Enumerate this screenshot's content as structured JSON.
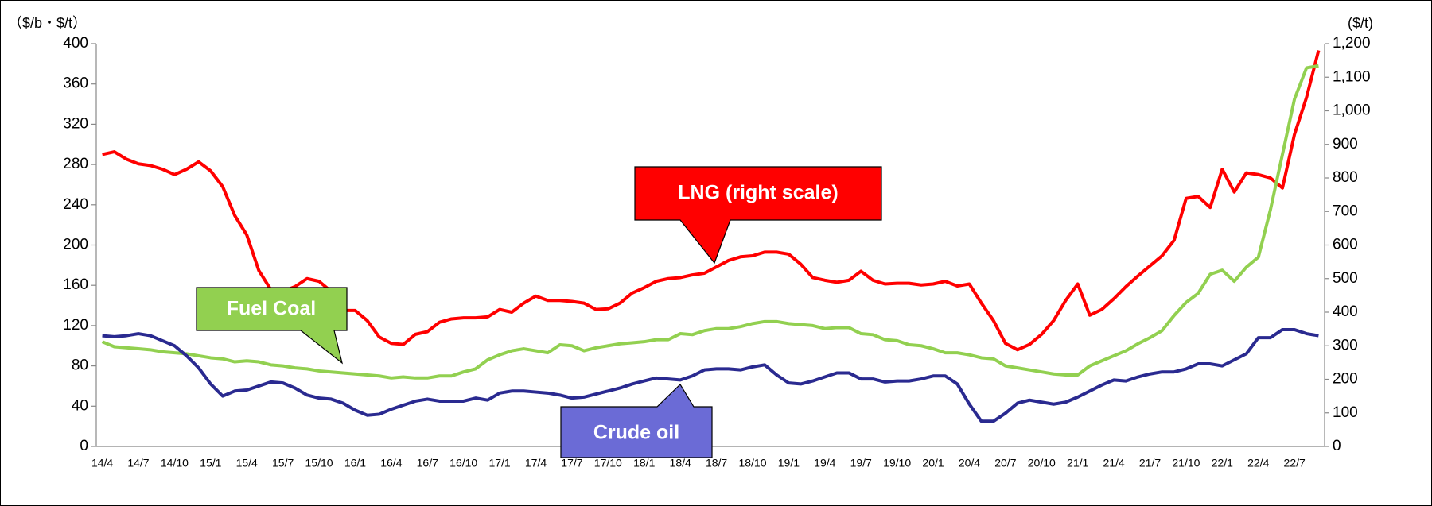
{
  "chart_data": {
    "type": "line",
    "y_label": "（$/b・$/t）",
    "y2_label": "($/t)",
    "categories": [
      "14/4",
      null,
      null,
      "14/7",
      null,
      null,
      "14/10",
      null,
      null,
      "15/1",
      null,
      null,
      "15/4",
      null,
      null,
      "15/7",
      null,
      null,
      "15/10",
      null,
      null,
      "16/1",
      null,
      null,
      "16/4",
      null,
      null,
      "16/7",
      null,
      null,
      "16/10",
      null,
      null,
      "17/1",
      null,
      null,
      "17/4",
      null,
      null,
      "17/7",
      null,
      null,
      "17/10",
      null,
      null,
      "18/1",
      null,
      null,
      "18/4",
      null,
      null,
      "18/7",
      null,
      null,
      "18/10",
      null,
      null,
      "19/1",
      null,
      null,
      "19/4",
      null,
      null,
      "19/7",
      null,
      null,
      "19/10",
      null,
      null,
      "20/1",
      null,
      null,
      "20/4",
      null,
      null,
      "20/7",
      null,
      null,
      "20/10",
      null,
      null,
      "21/1",
      null,
      null,
      "21/4",
      null,
      null,
      "21/7",
      null,
      null,
      "21/10",
      null,
      null,
      "22/1",
      null,
      null,
      "22/4",
      null,
      null,
      "22/7",
      null,
      null
    ],
    "series": [
      {
        "name": "LNG (right scale)",
        "color": "#ff0000",
        "axis": "y2",
        "values": [
          870,
          878,
          856,
          842,
          837,
          826,
          810,
          826,
          848,
          821,
          774,
          688,
          630,
          524,
          467,
          462,
          476,
          500,
          492,
          462,
          405,
          405,
          375,
          326,
          307,
          304,
          334,
          342,
          370,
          380,
          383,
          383,
          386,
          408,
          400,
          427,
          448,
          435,
          435,
          432,
          427,
          408,
          410,
          427,
          457,
          473,
          492,
          500,
          503,
          511,
          516,
          535,
          554,
          565,
          568,
          579,
          579,
          573,
          543,
          503,
          495,
          489,
          495,
          522,
          495,
          484,
          486,
          486,
          481,
          484,
          492,
          478,
          484,
          427,
          375,
          307,
          288,
          304,
          334,
          375,
          435,
          484,
          391,
          408,
          440,
          476,
          508,
          538,
          568,
          614,
          739,
          745,
          712,
          826,
          758,
          815,
          810,
          800,
          770,
          930,
          1040,
          1180
        ]
      },
      {
        "name": "Fuel Coal",
        "color": "#92d050",
        "values": [
          104,
          99,
          98,
          97,
          96,
          94,
          93,
          92,
          90,
          88,
          87,
          84,
          85,
          84,
          81,
          80,
          78,
          77,
          75,
          74,
          73,
          72,
          71,
          70,
          68,
          69,
          68,
          68,
          70,
          70,
          74,
          77,
          86,
          91,
          95,
          97,
          95,
          93,
          101,
          100,
          95,
          98,
          100,
          102,
          103,
          104,
          106,
          106,
          112,
          111,
          115,
          117,
          117,
          119,
          122,
          124,
          124,
          122,
          121,
          120,
          117,
          118,
          118,
          112,
          111,
          106,
          105,
          101,
          100,
          97,
          93,
          93,
          91,
          88,
          87,
          80,
          78,
          76,
          74,
          72,
          71,
          71,
          80,
          85,
          90,
          95,
          102,
          108,
          115,
          130,
          143,
          152,
          171,
          175,
          164,
          178,
          188,
          235,
          290,
          345,
          376,
          378
        ]
      },
      {
        "name": "Crude oil",
        "color": "#2a2a90",
        "values": [
          110,
          109,
          110,
          112,
          110,
          105,
          100,
          90,
          78,
          62,
          50,
          55,
          56,
          60,
          64,
          63,
          58,
          51,
          48,
          47,
          43,
          36,
          31,
          32,
          37,
          41,
          45,
          47,
          45,
          45,
          45,
          48,
          46,
          53,
          55,
          55,
          54,
          53,
          51,
          48,
          49,
          52,
          55,
          58,
          62,
          65,
          68,
          67,
          66,
          70,
          76,
          77,
          77,
          76,
          79,
          81,
          71,
          63,
          62,
          65,
          69,
          73,
          73,
          67,
          67,
          64,
          65,
          65,
          67,
          70,
          70,
          62,
          42,
          25,
          25,
          33,
          43,
          46,
          44,
          42,
          44,
          49,
          55,
          61,
          66,
          65,
          69,
          72,
          74,
          74,
          77,
          82,
          82,
          80,
          86,
          92,
          108,
          108,
          116,
          116,
          112,
          110
        ]
      }
    ],
    "ylim": [
      0,
      400
    ],
    "yticks": [
      0,
      40,
      80,
      120,
      160,
      200,
      240,
      280,
      320,
      360,
      400
    ],
    "y2lim": [
      0,
      1200
    ],
    "y2ticks": [
      0,
      100,
      200,
      300,
      400,
      500,
      600,
      700,
      800,
      900,
      {
        "value": 1000,
        "label": "1,000"
      },
      {
        "value": 1100,
        "label": "1,100"
      },
      {
        "value": 1200,
        "label": "1,200"
      }
    ]
  }
}
